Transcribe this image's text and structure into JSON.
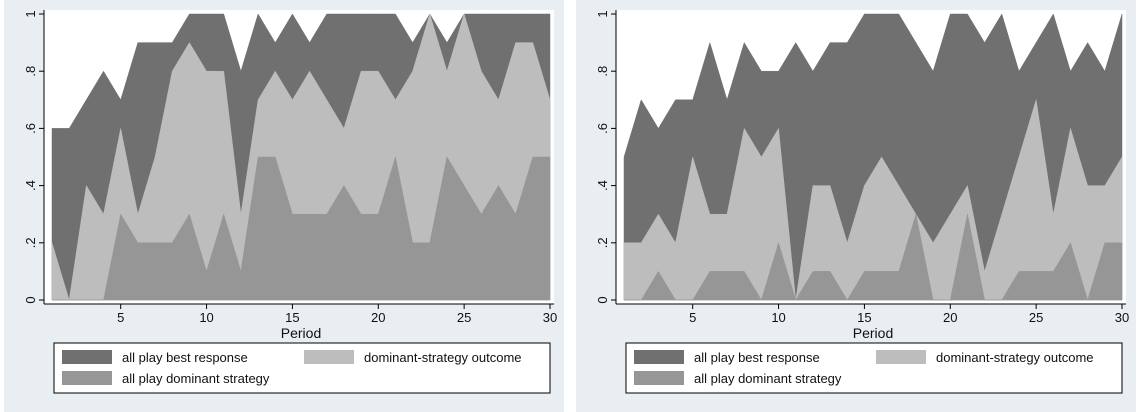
{
  "colors": {
    "background": "#e8eef2",
    "plot_area": "#ffffff",
    "best_response": "#707070",
    "dominant_outcome": "#bdbdbd",
    "dominant_strategy": "#969696",
    "legend_box": "#ffffff"
  },
  "chart_data": [
    {
      "type": "area",
      "xlabel": "Period",
      "ylabel": "",
      "xlim": [
        1,
        30
      ],
      "ylim": [
        0,
        1
      ],
      "xticks": [
        "5",
        "10",
        "15",
        "20",
        "25",
        "30"
      ],
      "yticks": [
        "0",
        ".2",
        ".4",
        ".6",
        ".8",
        "1"
      ],
      "legend_position": "bottom",
      "x": [
        1,
        2,
        3,
        4,
        5,
        6,
        7,
        8,
        9,
        10,
        11,
        12,
        13,
        14,
        15,
        16,
        17,
        18,
        19,
        20,
        21,
        22,
        23,
        24,
        25,
        26,
        27,
        28,
        29,
        30
      ],
      "series": [
        {
          "name": "all play best response",
          "color": "#707070",
          "values": [
            0.6,
            0.6,
            0.7,
            0.8,
            0.7,
            0.9,
            0.9,
            0.9,
            1.0,
            1.0,
            1.0,
            0.8,
            1.0,
            0.9,
            1.0,
            0.9,
            1.0,
            1.0,
            1.0,
            1.0,
            1.0,
            0.9,
            1.0,
            0.9,
            1.0,
            1.0,
            1.0,
            1.0,
            1.0,
            1.0
          ]
        },
        {
          "name": "dominant-strategy outcome",
          "color": "#bdbdbd",
          "values": [
            0.2,
            0.0,
            0.4,
            0.3,
            0.6,
            0.3,
            0.5,
            0.8,
            0.9,
            0.8,
            0.8,
            0.3,
            0.7,
            0.8,
            0.7,
            0.8,
            0.7,
            0.6,
            0.8,
            0.8,
            0.7,
            0.8,
            1.0,
            0.8,
            1.0,
            0.8,
            0.7,
            0.9,
            0.9,
            0.7
          ]
        },
        {
          "name": "all play dominant strategy",
          "color": "#969696",
          "values": [
            0.0,
            0.0,
            0.0,
            0.0,
            0.3,
            0.2,
            0.2,
            0.2,
            0.3,
            0.1,
            0.3,
            0.1,
            0.5,
            0.5,
            0.3,
            0.3,
            0.3,
            0.4,
            0.3,
            0.3,
            0.5,
            0.2,
            0.2,
            0.5,
            0.4,
            0.3,
            0.4,
            0.3,
            0.5,
            0.5
          ]
        }
      ]
    },
    {
      "type": "area",
      "xlabel": "Period",
      "ylabel": "",
      "xlim": [
        1,
        30
      ],
      "ylim": [
        0,
        1
      ],
      "xticks": [
        "5",
        "10",
        "15",
        "20",
        "25",
        "30"
      ],
      "yticks": [
        "0",
        ".2",
        ".4",
        ".6",
        ".8",
        "1"
      ],
      "legend_position": "bottom",
      "x": [
        1,
        2,
        3,
        4,
        5,
        6,
        7,
        8,
        9,
        10,
        11,
        12,
        13,
        14,
        15,
        16,
        17,
        18,
        19,
        20,
        21,
        22,
        23,
        24,
        25,
        26,
        27,
        28,
        29,
        30
      ],
      "series": [
        {
          "name": "all play best response",
          "color": "#707070",
          "values": [
            0.5,
            0.7,
            0.6,
            0.7,
            0.7,
            0.9,
            0.7,
            0.9,
            0.8,
            0.8,
            0.9,
            0.8,
            0.9,
            0.9,
            1.0,
            1.0,
            1.0,
            0.9,
            0.8,
            1.0,
            1.0,
            0.9,
            1.0,
            0.8,
            0.9,
            1.0,
            0.8,
            0.9,
            0.8,
            1.0
          ]
        },
        {
          "name": "dominant-strategy outcome",
          "color": "#bdbdbd",
          "values": [
            0.2,
            0.2,
            0.3,
            0.2,
            0.5,
            0.3,
            0.3,
            0.6,
            0.5,
            0.6,
            0.0,
            0.4,
            0.4,
            0.2,
            0.4,
            0.5,
            0.4,
            0.3,
            0.2,
            0.3,
            0.4,
            0.1,
            0.3,
            0.5,
            0.7,
            0.3,
            0.6,
            0.4,
            0.4,
            0.5
          ]
        },
        {
          "name": "all play dominant strategy",
          "color": "#969696",
          "values": [
            0.0,
            0.0,
            0.1,
            0.0,
            0.0,
            0.1,
            0.1,
            0.1,
            0.0,
            0.2,
            0.0,
            0.1,
            0.1,
            0.0,
            0.1,
            0.1,
            0.1,
            0.3,
            0.0,
            0.0,
            0.3,
            0.0,
            0.0,
            0.1,
            0.1,
            0.1,
            0.2,
            0.0,
            0.2,
            0.2
          ]
        }
      ]
    }
  ]
}
